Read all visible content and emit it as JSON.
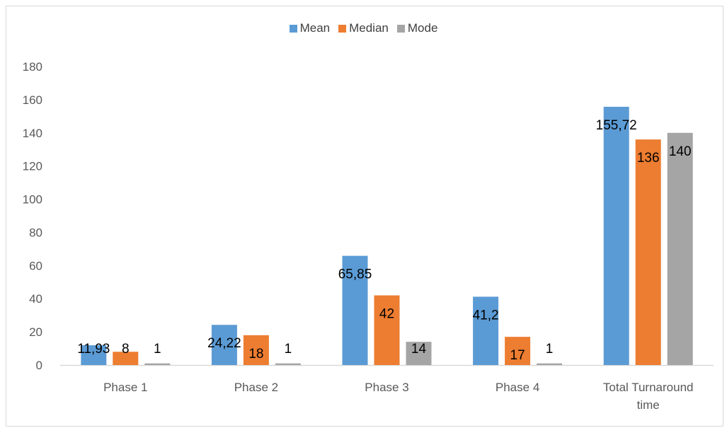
{
  "chart_data": {
    "type": "bar",
    "categories": [
      "Phase 1",
      "Phase 2",
      "Phase 3",
      "Phase 4",
      "Total Turnaround time"
    ],
    "series": [
      {
        "name": "Mean",
        "color": "#5b9bd5",
        "values": [
          11.93,
          24.22,
          65.85,
          41.2,
          155.72
        ],
        "labels": [
          "11,93",
          "24,22",
          "65,85",
          "41,2",
          "155,72"
        ]
      },
      {
        "name": "Median",
        "color": "#ed7d31",
        "values": [
          8,
          18,
          42,
          17,
          136
        ],
        "labels": [
          "8",
          "18",
          "42",
          "17",
          "136"
        ]
      },
      {
        "name": "Mode",
        "color": "#a5a5a5",
        "values": [
          1,
          1,
          14,
          1,
          140
        ],
        "labels": [
          "1",
          "1",
          "14",
          "1",
          "140"
        ]
      }
    ],
    "yticks": [
      "0",
      "20",
      "40",
      "60",
      "80",
      "100",
      "120",
      "140",
      "160",
      "180"
    ],
    "ylim": [
      0,
      180
    ],
    "grid": false,
    "legend_position": "top",
    "title": "",
    "xlabel": "",
    "ylabel": ""
  }
}
